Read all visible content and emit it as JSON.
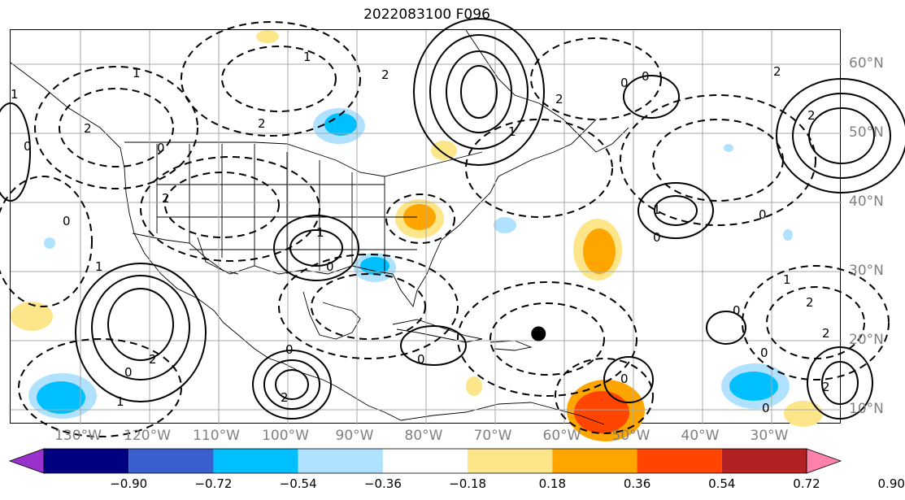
{
  "title": "2022083100 F096",
  "map": {
    "lon_labels": [
      {
        "text": "130°W",
        "lon": -130
      },
      {
        "text": "120°W",
        "lon": -120
      },
      {
        "text": "110°W",
        "lon": -110
      },
      {
        "text": "100°W",
        "lon": -100
      },
      {
        "text": "90°W",
        "lon": -90
      },
      {
        "text": "80°W",
        "lon": -80
      },
      {
        "text": "70°W",
        "lon": -70
      },
      {
        "text": "60°W",
        "lon": -60
      },
      {
        "text": "50°W",
        "lon": -50
      },
      {
        "text": "40°W",
        "lon": -40
      },
      {
        "text": "30°W",
        "lon": -30
      }
    ],
    "lat_labels": [
      {
        "text": "60°N",
        "lat": 60
      },
      {
        "text": "50°N",
        "lat": 50
      },
      {
        "text": "40°N",
        "lat": 40
      },
      {
        "text": "30°N",
        "lat": 30
      },
      {
        "text": "20°N",
        "lat": 20
      },
      {
        "text": "10°N",
        "lat": 10
      }
    ],
    "storm_marker": {
      "lon": -63.5,
      "lat": 21
    },
    "contour_labels": [
      "0",
      "1",
      "2"
    ]
  },
  "colorbar": {
    "ticks": [
      "−0.90",
      "−0.72",
      "−0.54",
      "−0.36",
      "−0.18",
      "0.18",
      "0.36",
      "0.54",
      "0.72",
      "0.90"
    ],
    "colors": [
      "#9932cc",
      "#000080",
      "#3a5fcd",
      "#00bfff",
      "#b0e2ff",
      "#ffffff",
      "#fde68a",
      "#ffa500",
      "#ff4500",
      "#b22222",
      "#ff82ab"
    ]
  }
}
